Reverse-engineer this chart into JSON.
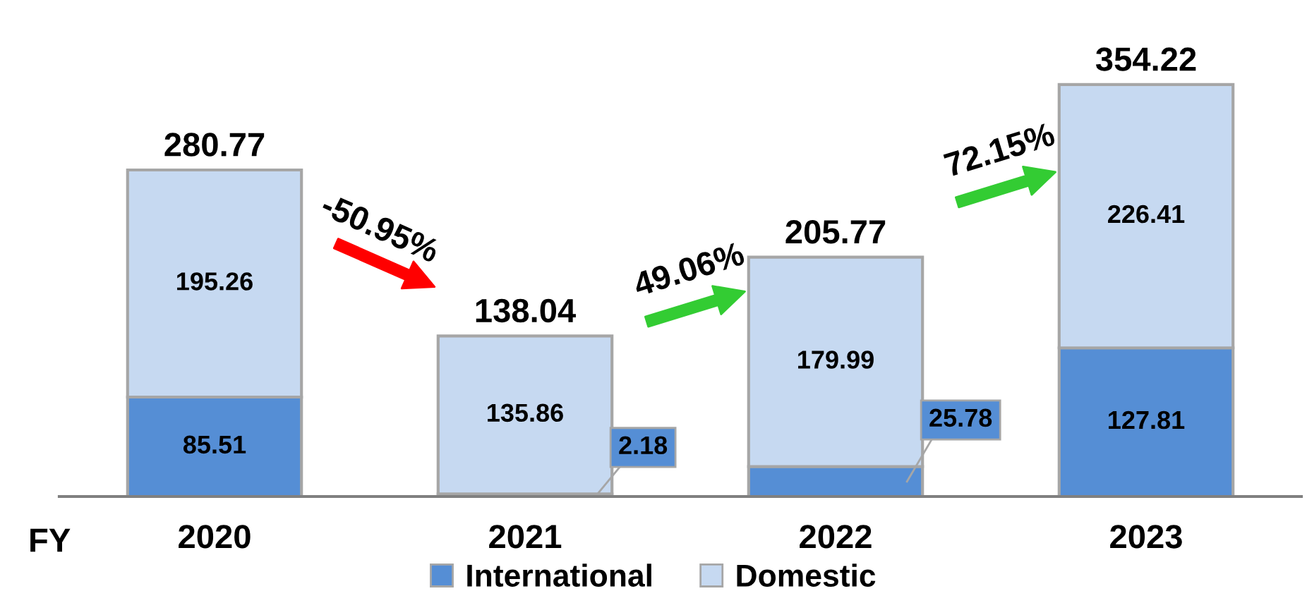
{
  "chart_data": {
    "type": "bar",
    "stacked": true,
    "categories": [
      "2020",
      "2021",
      "2022",
      "2023"
    ],
    "series": [
      {
        "name": "International",
        "color": "#558ed5",
        "values": [
          85.51,
          2.18,
          25.78,
          127.81
        ]
      },
      {
        "name": "Domestic",
        "color": "#c6d9f1",
        "values": [
          195.26,
          135.86,
          179.99,
          226.41
        ]
      }
    ],
    "totals": [
      "280.77",
      "138.04",
      "205.77",
      "354.22"
    ],
    "data_labels": true,
    "legend": "bottom",
    "annotations": [
      "FY",
      "-50.95%",
      "49.06%",
      "72.15%"
    ]
  }
}
